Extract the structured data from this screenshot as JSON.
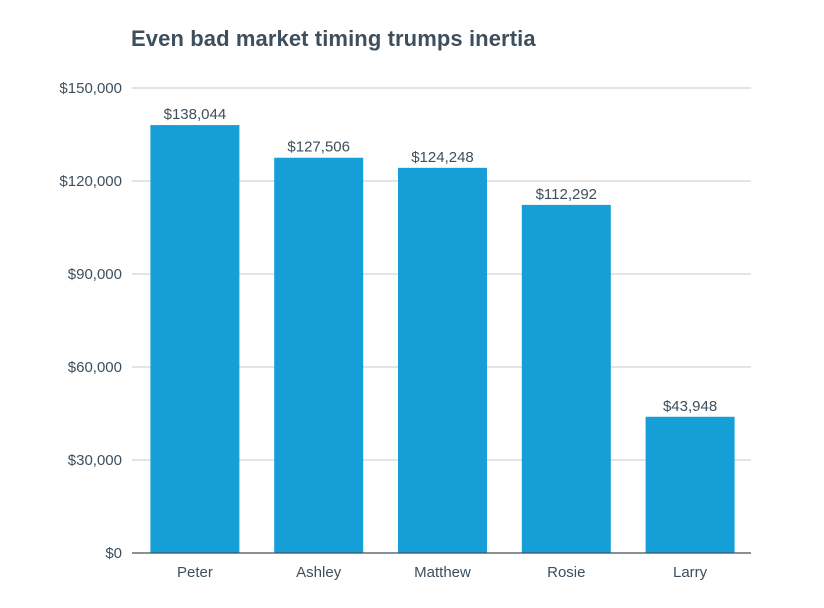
{
  "chart_data": {
    "type": "bar",
    "title": "Even bad market timing trumps inertia",
    "xlabel": "",
    "ylabel": "",
    "categories": [
      "Peter",
      "Ashley",
      "Matthew",
      "Rosie",
      "Larry"
    ],
    "values": [
      138044,
      127506,
      124248,
      112292,
      43948
    ],
    "value_labels": [
      "$138,044",
      "$127,506",
      "$124,248",
      "$112,292",
      "$43,948"
    ],
    "ylim": [
      0,
      150000
    ],
    "yticks": [
      0,
      30000,
      60000,
      90000,
      120000,
      150000
    ],
    "ytick_labels": [
      "$0",
      "$30,000",
      "$60,000",
      "$90,000",
      "$120,000",
      "$150,000"
    ],
    "grid": true,
    "bar_color": "#169fd6",
    "grid_color": "#c8c8c8",
    "text_color": "#3d4f5c"
  }
}
